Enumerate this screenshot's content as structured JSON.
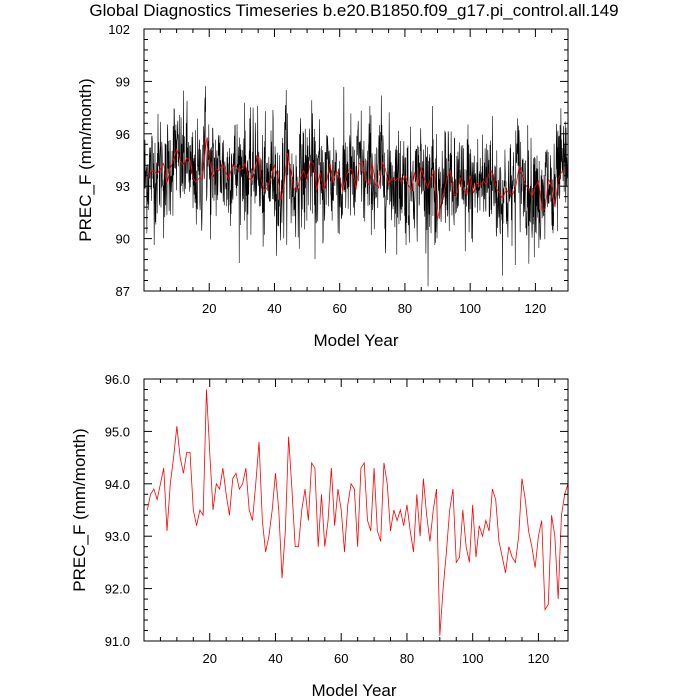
{
  "chart_data": [
    {
      "type": "line",
      "title": "Global Diagnostics Timeseries b.e20.B1850.f09_g17.pi_control.all.149",
      "xlabel": "Model Year",
      "ylabel": "PREC_F (mm/month)",
      "xlim": [
        0,
        130
      ],
      "ylim": [
        87,
        102
      ],
      "xticks": [
        20,
        40,
        60,
        80,
        100,
        120
      ],
      "xtick_labels": [
        "20",
        "40",
        "60",
        "80",
        "100",
        "120"
      ],
      "yticks": [
        87,
        90,
        93,
        96,
        99,
        102
      ],
      "ytick_labels": [
        "87",
        "90",
        "93",
        "96",
        "99",
        "102"
      ],
      "grid": false,
      "series": [
        {
          "role": "monthly",
          "color": "#000000",
          "x_start": 0.04,
          "x_step": 0.0833,
          "count": 1560,
          "values": []
        },
        {
          "role": "annual-mean",
          "color": "#ff0000",
          "x": [
            1,
            2,
            3,
            4,
            5,
            6,
            7,
            8,
            9,
            10,
            11,
            12,
            13,
            14,
            15,
            16,
            17,
            18,
            19,
            20,
            21,
            22,
            23,
            24,
            25,
            26,
            27,
            28,
            29,
            30,
            31,
            32,
            33,
            34,
            35,
            36,
            37,
            38,
            39,
            40,
            41,
            42,
            43,
            44,
            45,
            46,
            47,
            48,
            49,
            50,
            51,
            52,
            53,
            54,
            55,
            56,
            57,
            58,
            59,
            60,
            61,
            62,
            63,
            64,
            65,
            66,
            67,
            68,
            69,
            70,
            71,
            72,
            73,
            74,
            75,
            76,
            77,
            78,
            79,
            80,
            81,
            82,
            83,
            84,
            85,
            86,
            87,
            88,
            89,
            90,
            91,
            92,
            93,
            94,
            95,
            96,
            97,
            98,
            99,
            100,
            101,
            102,
            103,
            104,
            105,
            106,
            107,
            108,
            109,
            110,
            111,
            112,
            113,
            114,
            115,
            116,
            117,
            118,
            119,
            120,
            121,
            122,
            123,
            124,
            125,
            126,
            127,
            128,
            129
          ],
          "values": [
            93.5,
            93.8,
            93.9,
            93.7,
            94.0,
            94.3,
            93.1,
            94.0,
            94.5,
            95.1,
            94.5,
            94.2,
            94.6,
            94.6,
            93.5,
            93.2,
            93.5,
            93.4,
            95.8,
            94.6,
            93.5,
            94.0,
            93.9,
            94.3,
            93.8,
            93.4,
            94.1,
            94.2,
            93.9,
            94.0,
            94.3,
            93.5,
            93.3,
            94.0,
            94.8,
            93.3,
            92.7,
            93.0,
            93.5,
            94.2,
            93.5,
            92.2,
            93.1,
            94.9,
            93.9,
            92.8,
            92.8,
            93.5,
            93.9,
            93.3,
            94.4,
            94.3,
            92.8,
            93.8,
            92.8,
            93.3,
            94.3,
            93.2,
            93.9,
            93.5,
            92.7,
            93.6,
            94.0,
            93.9,
            92.8,
            94.3,
            94.4,
            93.3,
            93.1,
            94.3,
            93.1,
            92.9,
            94.4,
            94.0,
            93.1,
            93.5,
            93.3,
            93.5,
            93.2,
            93.6,
            93.1,
            92.7,
            93.8,
            93.0,
            94.1,
            93.4,
            92.9,
            93.5,
            93.9,
            91.1,
            92.0,
            92.7,
            93.5,
            93.9,
            92.5,
            92.6,
            93.5,
            92.8,
            92.5,
            93.6,
            92.6,
            93.2,
            93.0,
            93.3,
            93.1,
            93.9,
            93.7,
            92.9,
            92.6,
            92.3,
            92.8,
            92.6,
            92.5,
            93.0,
            94.1,
            93.7,
            93.1,
            92.8,
            92.4,
            93.0,
            93.3,
            91.6,
            91.7,
            93.4,
            93.0,
            91.8,
            93.4,
            93.8,
            94.0
          ]
        }
      ]
    },
    {
      "type": "line",
      "title": "",
      "xlabel": "Model Year",
      "ylabel": "PREC_F (mm/month)",
      "xlim": [
        0,
        129
      ],
      "ylim": [
        91.0,
        96.0
      ],
      "xticks": [
        20,
        40,
        60,
        80,
        100,
        120
      ],
      "xtick_labels": [
        "20",
        "40",
        "60",
        "80",
        "100",
        "120"
      ],
      "yticks": [
        91.0,
        92.0,
        93.0,
        94.0,
        95.0,
        96.0
      ],
      "ytick_labels": [
        "91.0",
        "92.0",
        "93.0",
        "94.0",
        "95.0",
        "96.0"
      ],
      "grid": false,
      "series": [
        {
          "role": "annual-mean",
          "color": "#ff0000",
          "x": [
            1,
            2,
            3,
            4,
            5,
            6,
            7,
            8,
            9,
            10,
            11,
            12,
            13,
            14,
            15,
            16,
            17,
            18,
            19,
            20,
            21,
            22,
            23,
            24,
            25,
            26,
            27,
            28,
            29,
            30,
            31,
            32,
            33,
            34,
            35,
            36,
            37,
            38,
            39,
            40,
            41,
            42,
            43,
            44,
            45,
            46,
            47,
            48,
            49,
            50,
            51,
            52,
            53,
            54,
            55,
            56,
            57,
            58,
            59,
            60,
            61,
            62,
            63,
            64,
            65,
            66,
            67,
            68,
            69,
            70,
            71,
            72,
            73,
            74,
            75,
            76,
            77,
            78,
            79,
            80,
            81,
            82,
            83,
            84,
            85,
            86,
            87,
            88,
            89,
            90,
            91,
            92,
            93,
            94,
            95,
            96,
            97,
            98,
            99,
            100,
            101,
            102,
            103,
            104,
            105,
            106,
            107,
            108,
            109,
            110,
            111,
            112,
            113,
            114,
            115,
            116,
            117,
            118,
            119,
            120,
            121,
            122,
            123,
            124,
            125,
            126,
            127,
            128,
            129
          ],
          "values": [
            93.5,
            93.8,
            93.9,
            93.7,
            94.0,
            94.3,
            93.1,
            94.0,
            94.5,
            95.1,
            94.5,
            94.2,
            94.6,
            94.6,
            93.5,
            93.2,
            93.5,
            93.4,
            95.8,
            94.6,
            93.5,
            94.0,
            93.9,
            94.3,
            93.8,
            93.4,
            94.1,
            94.2,
            93.9,
            94.0,
            94.3,
            93.5,
            93.3,
            94.0,
            94.8,
            93.3,
            92.7,
            93.0,
            93.5,
            94.2,
            93.5,
            92.2,
            93.1,
            94.9,
            93.9,
            92.8,
            92.8,
            93.5,
            93.9,
            93.3,
            94.4,
            94.3,
            92.8,
            93.8,
            92.8,
            93.3,
            94.3,
            93.2,
            93.9,
            93.5,
            92.7,
            93.6,
            94.0,
            93.9,
            92.8,
            94.3,
            94.4,
            93.3,
            93.1,
            94.3,
            93.1,
            92.9,
            94.4,
            94.0,
            93.1,
            93.5,
            93.3,
            93.5,
            93.2,
            93.6,
            93.1,
            92.7,
            93.8,
            93.0,
            94.1,
            93.4,
            92.9,
            93.5,
            93.9,
            91.1,
            92.0,
            92.7,
            93.5,
            93.9,
            92.5,
            92.6,
            93.5,
            92.8,
            92.5,
            93.6,
            92.6,
            93.2,
            93.0,
            93.3,
            93.1,
            93.9,
            93.7,
            92.9,
            92.6,
            92.3,
            92.8,
            92.6,
            92.5,
            93.0,
            94.1,
            93.7,
            93.1,
            92.8,
            92.4,
            93.0,
            93.3,
            91.6,
            91.7,
            93.4,
            93.0,
            91.8,
            93.4,
            93.8,
            94.0
          ]
        }
      ]
    }
  ]
}
